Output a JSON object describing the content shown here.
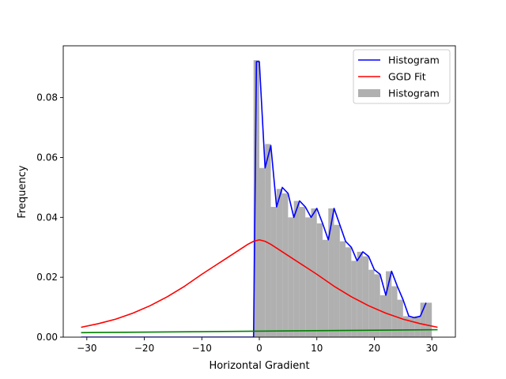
{
  "chart_data": {
    "type": "line",
    "xlabel": "Horizontal Gradient",
    "ylabel": "Frequency",
    "xlim": [
      -34.1,
      34.1
    ],
    "ylim": [
      0,
      0.0973
    ],
    "xticks": [
      -30,
      -20,
      -10,
      0,
      10,
      20,
      30
    ],
    "yticks": [
      0.0,
      0.02,
      0.04,
      0.06,
      0.08
    ],
    "xtick_labels": [
      "−30",
      "−20",
      "−10",
      "0",
      "10",
      "20",
      "30"
    ],
    "ytick_labels": [
      "0.00",
      "0.02",
      "0.04",
      "0.06",
      "0.08"
    ],
    "grid": false,
    "legend_position": "top-right",
    "legend": [
      {
        "label": "Histogram",
        "kind": "line",
        "color": "#0000ff"
      },
      {
        "label": "GGD Fit",
        "kind": "line",
        "color": "#ff0000"
      },
      {
        "label": "Histogram",
        "kind": "patch",
        "color": "#b0b0b0"
      }
    ],
    "histogram_bars": {
      "color": "#b0b0b0",
      "bin_width": 1,
      "left_edges": [
        -1,
        0,
        1,
        2,
        3,
        4,
        5,
        6,
        7,
        8,
        9,
        10,
        11,
        12,
        13,
        14,
        15,
        16,
        17,
        18,
        19,
        20,
        21,
        22,
        23,
        24,
        25,
        26,
        27,
        28,
        29
      ],
      "values": [
        0.0925,
        0.0565,
        0.0645,
        0.0435,
        0.0495,
        0.048,
        0.04,
        0.0455,
        0.0435,
        0.04,
        0.043,
        0.038,
        0.0325,
        0.043,
        0.0375,
        0.032,
        0.03,
        0.0255,
        0.0285,
        0.027,
        0.0225,
        0.021,
        0.014,
        0.022,
        0.017,
        0.0125,
        0.007,
        0.0065,
        0.007,
        0.0115,
        0.0115
      ]
    },
    "series": [
      {
        "name": "Histogram",
        "color": "#0000ff",
        "x": [
          -31,
          -1,
          -0.5,
          0,
          1,
          2,
          3,
          4,
          5,
          6,
          7,
          8,
          9,
          10,
          11,
          12,
          13,
          14,
          15,
          16,
          17,
          18,
          19,
          20,
          21,
          22,
          23,
          24,
          25,
          26,
          27,
          28,
          29
        ],
        "y": [
          0,
          0,
          0.092,
          0.092,
          0.0565,
          0.064,
          0.0435,
          0.05,
          0.048,
          0.04,
          0.0455,
          0.0435,
          0.04,
          0.043,
          0.038,
          0.0325,
          0.043,
          0.0375,
          0.032,
          0.03,
          0.0255,
          0.0285,
          0.027,
          0.0225,
          0.021,
          0.014,
          0.022,
          0.017,
          0.0125,
          0.007,
          0.0065,
          0.007,
          0.0115
        ]
      },
      {
        "name": "GGD Fit",
        "color": "#ff0000",
        "x": [
          -31,
          -28,
          -25,
          -22,
          -19,
          -16,
          -13,
          -10,
          -8,
          -6,
          -4,
          -2,
          -1,
          0,
          1,
          2,
          4,
          6,
          8,
          10,
          13,
          16,
          19,
          22,
          25,
          28,
          31
        ],
        "y": [
          0.0033,
          0.0045,
          0.006,
          0.008,
          0.0105,
          0.0135,
          0.017,
          0.021,
          0.0235,
          0.026,
          0.0285,
          0.031,
          0.032,
          0.0325,
          0.032,
          0.031,
          0.0285,
          0.026,
          0.0235,
          0.021,
          0.017,
          0.0135,
          0.0105,
          0.008,
          0.006,
          0.0045,
          0.0033
        ]
      },
      {
        "color": "#008000",
        "x": [
          -31,
          31
        ],
        "y": [
          0.0015,
          0.0025
        ]
      }
    ]
  }
}
